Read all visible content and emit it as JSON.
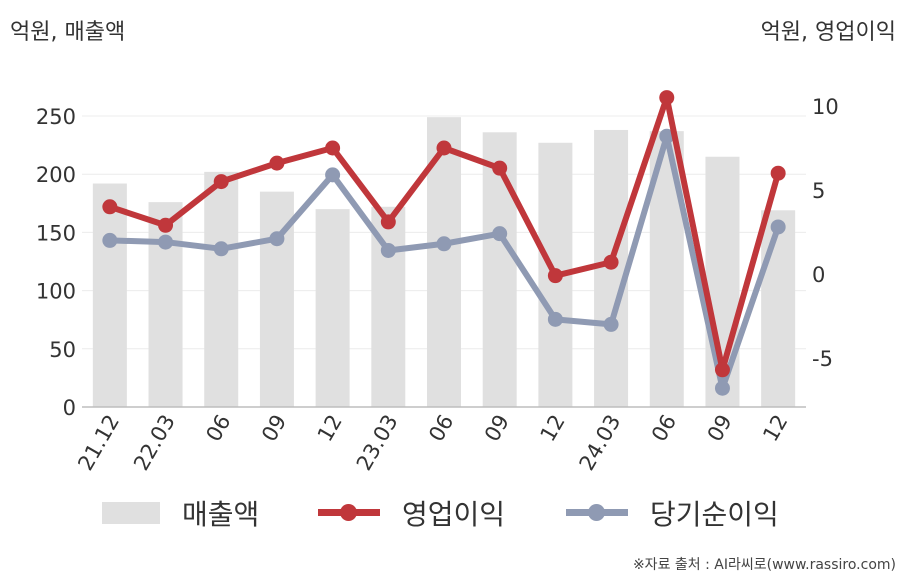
{
  "units": {
    "left": "억원, 매출액",
    "right": "억원, 영업이익"
  },
  "source": "※자료 출처 : AI라씨로(www.rassiro.com)",
  "chart_data": {
    "type": "bar+line",
    "categories": [
      "21.12",
      "22.03",
      "06",
      "09",
      "12",
      "23.03",
      "06",
      "09",
      "12",
      "24.03",
      "06",
      "09",
      "12"
    ],
    "left_axis": {
      "ylim": [
        0,
        260
      ],
      "ticks": [
        0,
        50,
        100,
        150,
        200,
        250
      ]
    },
    "right_axis": {
      "ylim": [
        -7.8,
        10.5
      ],
      "ticks": [
        -5,
        0,
        5,
        10
      ]
    },
    "grid": true,
    "legend_position": "bottom",
    "series": [
      {
        "name": "매출액",
        "kind": "bar",
        "axis": "left",
        "color": "#e0e0e0",
        "values": [
          192,
          176,
          202,
          185,
          170,
          172,
          249,
          236,
          227,
          238,
          237,
          215,
          169
        ]
      },
      {
        "name": "영업이익",
        "kind": "line",
        "axis": "right",
        "color": "#c0373b",
        "values": [
          4.0,
          2.9,
          5.5,
          6.6,
          7.5,
          3.1,
          7.5,
          6.3,
          -0.1,
          0.7,
          10.5,
          -5.7,
          6.0
        ]
      },
      {
        "name": "당기순이익",
        "kind": "line",
        "axis": "right",
        "color": "#8f9ab3",
        "values": [
          2.0,
          1.9,
          1.5,
          2.1,
          5.9,
          1.4,
          1.8,
          2.4,
          -2.7,
          -3.0,
          8.2,
          -6.8,
          2.8
        ]
      }
    ]
  }
}
